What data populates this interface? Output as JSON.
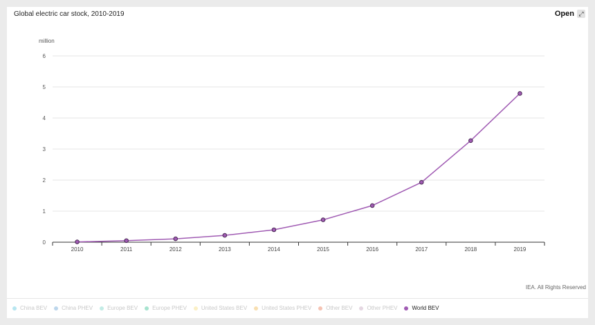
{
  "header": {
    "title": "Global electric car stock, 2010-2019",
    "open_label": "Open",
    "open_icon": "expand-icon"
  },
  "footer": {
    "credit": "IEA. All Rights Reserved"
  },
  "chart_data": {
    "type": "line",
    "title": "Global electric car stock, 2010-2019",
    "ylabel": "million",
    "xlabel": "",
    "ylim": [
      0,
      6
    ],
    "yticks": [
      "0",
      "1",
      "2",
      "3",
      "4",
      "5",
      "6"
    ],
    "categories": [
      "2010",
      "2011",
      "2012",
      "2013",
      "2014",
      "2015",
      "2016",
      "2017",
      "2018",
      "2019"
    ],
    "grid": true,
    "legend_position": "bottom-left",
    "series": [
      {
        "name": "World BEV",
        "values": [
          0.01,
          0.05,
          0.11,
          0.22,
          0.4,
          0.72,
          1.18,
          1.93,
          3.27,
          4.79
        ],
        "color": "#a05bb3",
        "visible": true
      }
    ],
    "legend": [
      {
        "label": "China BEV",
        "color": "#b7e6f0",
        "visible": false
      },
      {
        "label": "China PHEV",
        "color": "#bcd6ec",
        "visible": false
      },
      {
        "label": "Europe BEV",
        "color": "#c3ece6",
        "visible": false
      },
      {
        "label": "Europe PHEV",
        "color": "#a6e3cf",
        "visible": false
      },
      {
        "label": "United States BEV",
        "color": "#fbf0c6",
        "visible": false
      },
      {
        "label": "United States PHEV",
        "color": "#f8dfb1",
        "visible": false
      },
      {
        "label": "Other BEV",
        "color": "#f5c3b3",
        "visible": false
      },
      {
        "label": "Other PHEV",
        "color": "#e5d7e2",
        "visible": false
      },
      {
        "label": "World BEV",
        "color": "#a05bb3",
        "visible": true
      }
    ]
  }
}
